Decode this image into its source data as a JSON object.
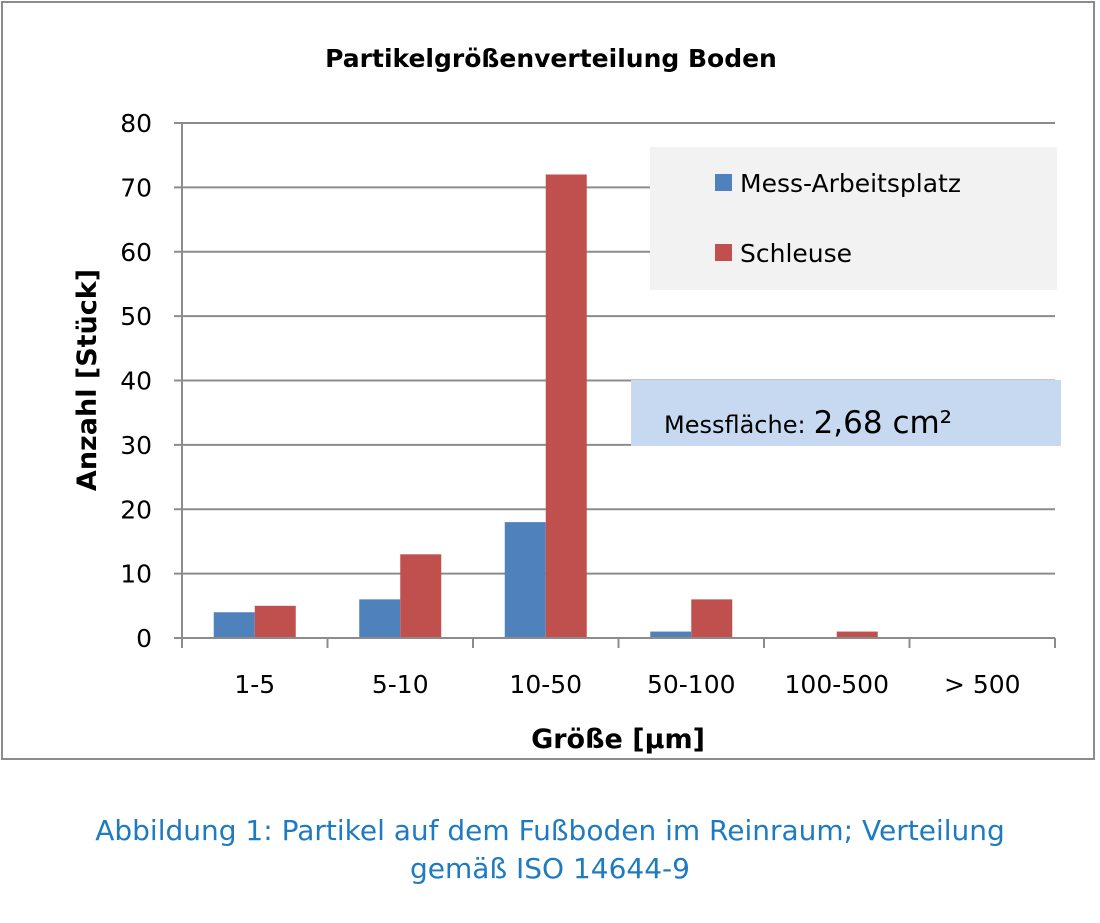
{
  "chart_data": {
    "type": "bar",
    "title": "Partikelgrößenverteilung Boden",
    "xlabel": "Größe [µm]",
    "ylabel": "Anzahl [Stück]",
    "categories": [
      "1-5",
      "5-10",
      "10-50",
      "50-100",
      "100-500",
      "> 500"
    ],
    "series": [
      {
        "name": "Mess-Arbeitsplatz",
        "color": "#4f81bd",
        "values": [
          4,
          6,
          18,
          1,
          0,
          0
        ]
      },
      {
        "name": "Schleuse",
        "color": "#c0504d",
        "values": [
          5,
          13,
          72,
          6,
          1,
          0
        ]
      }
    ],
    "ylim": [
      0,
      80
    ],
    "yticks": [
      0,
      10,
      20,
      30,
      40,
      50,
      60,
      70,
      80
    ],
    "grid": true,
    "legend_position": "top-right",
    "annotation": {
      "label": "Messfläche:",
      "value": "2,68 cm²"
    }
  },
  "caption": {
    "line1": "Abbildung 1: Partikel auf dem Fußboden im Reinraum; Verteilung",
    "line2": "gemäß ISO 14644-9"
  }
}
